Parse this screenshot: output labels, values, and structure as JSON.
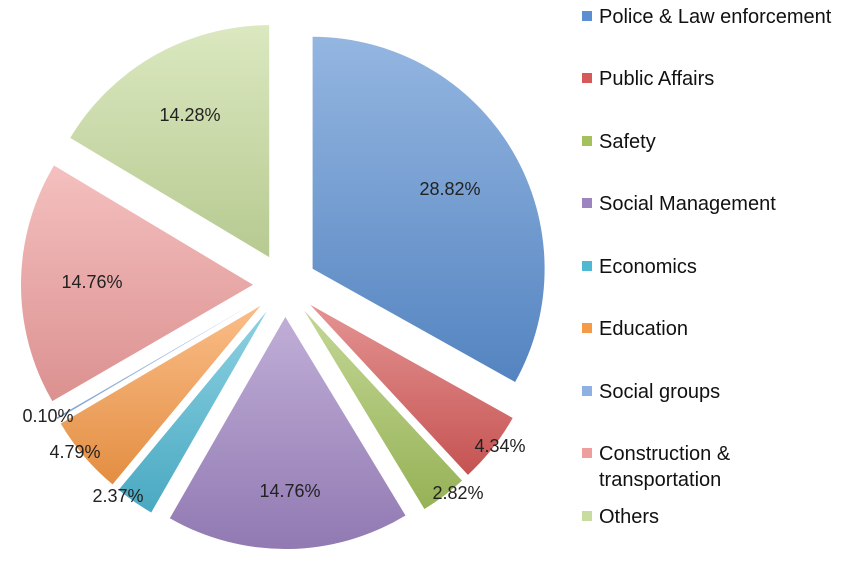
{
  "chart_data": {
    "type": "pie",
    "exploded": true,
    "legend_position": "right",
    "start_angle_deg": 0,
    "direction": "clockwise",
    "slices": [
      {
        "name": "Police & Law enforcement",
        "value": 28.82,
        "label": "28.82%",
        "color": "#5b8fd1"
      },
      {
        "name": "Public Affairs",
        "value": 4.34,
        "label": "4.34%",
        "color": "#d65a59"
      },
      {
        "name": "Safety",
        "value": 2.82,
        "label": "2.82%",
        "color": "#a3c25e"
      },
      {
        "name": "Social Management",
        "value": 14.76,
        "label": "14.76%",
        "color": "#9e83c1"
      },
      {
        "name": "Economics",
        "value": 2.37,
        "label": "2.37%",
        "color": "#4fb8d2"
      },
      {
        "name": "Education",
        "value": 4.79,
        "label": "4.79%",
        "color": "#f79a48"
      },
      {
        "name": "Social groups",
        "value": 0.1,
        "label": "0.10%",
        "color": "#8db1e2"
      },
      {
        "name": "Construction & transportation",
        "value": 14.76,
        "label": "14.76%",
        "color": "#ee9e9c"
      },
      {
        "name": "Others",
        "value": 14.28,
        "label": "14.28%",
        "color": "#c7dc9e"
      }
    ]
  }
}
